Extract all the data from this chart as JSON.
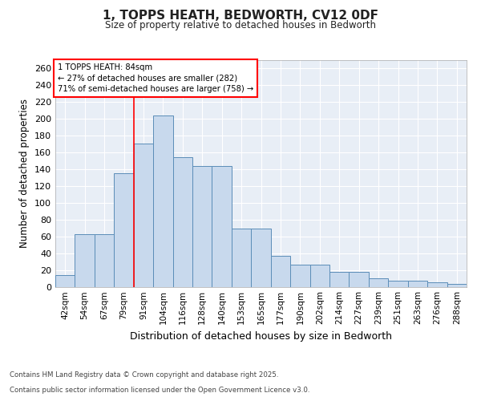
{
  "title": "1, TOPPS HEATH, BEDWORTH, CV12 0DF",
  "subtitle": "Size of property relative to detached houses in Bedworth",
  "xlabel": "Distribution of detached houses by size in Bedworth",
  "ylabel": "Number of detached properties",
  "bar_color": "#c8d9ed",
  "bar_edge_color": "#5b8db8",
  "background_color": "#e8eef6",
  "grid_color": "#ffffff",
  "fig_background": "#ffffff",
  "categories": [
    "42sqm",
    "54sqm",
    "67sqm",
    "79sqm",
    "91sqm",
    "104sqm",
    "116sqm",
    "128sqm",
    "140sqm",
    "153sqm",
    "165sqm",
    "177sqm",
    "190sqm",
    "202sqm",
    "214sqm",
    "227sqm",
    "239sqm",
    "251sqm",
    "263sqm",
    "276sqm",
    "288sqm"
  ],
  "values": [
    14,
    63,
    63,
    135,
    171,
    204,
    154,
    144,
    144,
    69,
    69,
    37,
    26,
    26,
    18,
    18,
    10,
    7,
    7,
    5,
    3
  ],
  "red_line_x": 3.5,
  "annotation_title": "1 TOPPS HEATH: 84sqm",
  "annotation_line1": "← 27% of detached houses are smaller (282)",
  "annotation_line2": "71% of semi-detached houses are larger (758) →",
  "footer_line1": "Contains HM Land Registry data © Crown copyright and database right 2025.",
  "footer_line2": "Contains public sector information licensed under the Open Government Licence v3.0.",
  "ylim": [
    0,
    270
  ],
  "yticks": [
    0,
    20,
    40,
    60,
    80,
    100,
    120,
    140,
    160,
    180,
    200,
    220,
    240,
    260
  ]
}
